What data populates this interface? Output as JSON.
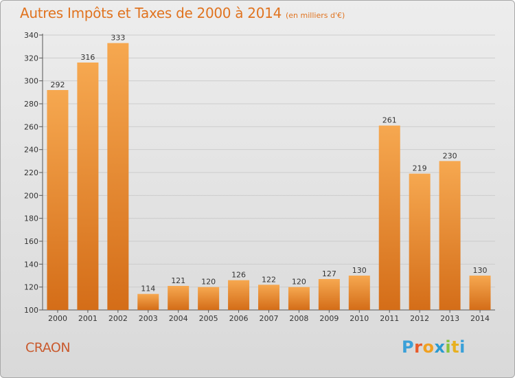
{
  "header": {
    "title": "Autres Impôts et Taxes de 2000 à 2014",
    "subtitle": "(en milliers d'€)"
  },
  "footer": {
    "city": "CRAON",
    "logo_text": "Proxiti"
  },
  "colors": {
    "title": "#e0731f",
    "bar_light": "#f6a850",
    "bar_dark": "#d46d18",
    "grid": "#cccccc",
    "city": "#c95a2e"
  },
  "chart_data": {
    "type": "bar",
    "title": "Autres Impôts et Taxes de 2000 à 2014",
    "subtitle": "(en milliers d'€)",
    "categories": [
      "2000",
      "2001",
      "2002",
      "2003",
      "2004",
      "2005",
      "2006",
      "2007",
      "2008",
      "2009",
      "2010",
      "2011",
      "2012",
      "2013",
      "2014"
    ],
    "values": [
      292,
      316,
      333,
      114,
      121,
      120,
      126,
      122,
      120,
      127,
      130,
      261,
      219,
      230,
      130
    ],
    "ylim": [
      100,
      340
    ],
    "yticks": [
      100,
      120,
      140,
      160,
      180,
      200,
      220,
      240,
      260,
      280,
      300,
      320,
      340
    ],
    "grid": true,
    "legend": "none"
  }
}
